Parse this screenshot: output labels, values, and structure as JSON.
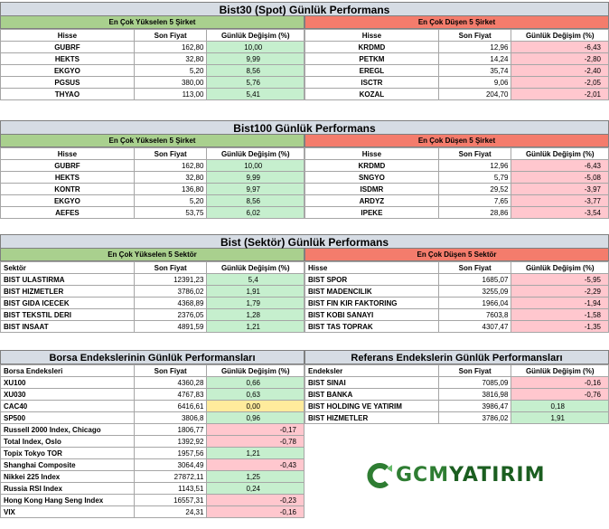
{
  "bist30": {
    "title": "Bist30 (Spot) Günlük Performans",
    "left_header": "En Çok Yükselen 5 Şirket",
    "right_header": "En Çok Düşen 5 Şirket",
    "cols": [
      "Hisse",
      "Son Fiyat",
      "Günlük Değişim (%)"
    ],
    "up": [
      [
        "GUBRF",
        "162,80",
        "10,00"
      ],
      [
        "HEKTS",
        "32,80",
        "9,99"
      ],
      [
        "EKGYO",
        "5,20",
        "8,56"
      ],
      [
        "PGSUS",
        "380,00",
        "5,76"
      ],
      [
        "THYAO",
        "113,00",
        "5,41"
      ]
    ],
    "down": [
      [
        "KRDMD",
        "12,96",
        "-6,43"
      ],
      [
        "PETKM",
        "14,24",
        "-2,80"
      ],
      [
        "EREGL",
        "35,74",
        "-2,40"
      ],
      [
        "ISCTR",
        "9,06",
        "-2,05"
      ],
      [
        "KOZAL",
        "204,70",
        "-2,01"
      ]
    ]
  },
  "bist100": {
    "title": "Bist100 Günlük Performans",
    "left_header": "En Çok Yükselen 5 Şirket",
    "right_header": "En Çok Düşen 5 Şirket",
    "cols": [
      "Hisse",
      "Son Fiyat",
      "Günlük Değişim (%)"
    ],
    "up": [
      [
        "GUBRF",
        "162,80",
        "10,00"
      ],
      [
        "HEKTS",
        "32,80",
        "9,99"
      ],
      [
        "KONTR",
        "136,80",
        "9,97"
      ],
      [
        "EKGYO",
        "5,20",
        "8,56"
      ],
      [
        "AEFES",
        "53,75",
        "6,02"
      ]
    ],
    "down": [
      [
        "KRDMD",
        "12,96",
        "-6,43"
      ],
      [
        "SNGYO",
        "5,79",
        "-5,08"
      ],
      [
        "ISDMR",
        "29,52",
        "-3,97"
      ],
      [
        "ARDYZ",
        "7,65",
        "-3,77"
      ],
      [
        "IPEKE",
        "28,86",
        "-3,54"
      ]
    ]
  },
  "sector": {
    "title": "Bist (Sektör) Günlük Performans",
    "left_header": "En Çok Yükselen 5 Sektör",
    "right_header": "En Çok Düşen 5 Sektör",
    "left_cols": [
      "Sektör",
      "Son Fiyat",
      "Günlük Değişim (%)"
    ],
    "right_cols": [
      "Hisse",
      "Son Fiyat",
      "Günlük Değişim (%)"
    ],
    "up": [
      [
        "BIST ULASTIRMA",
        "12391,23",
        "5,4"
      ],
      [
        "BIST HIZMETLER",
        "3786,02",
        "1,91"
      ],
      [
        "BIST GIDA ICECEK",
        "4368,89",
        "1,79"
      ],
      [
        "BIST TEKSTIL DERI",
        "2376,05",
        "1,28"
      ],
      [
        "BIST INSAAT",
        "4891,59",
        "1,21"
      ]
    ],
    "down": [
      [
        "BIST SPOR",
        "1685,07",
        "-5,95"
      ],
      [
        "BIST MADENCILIK",
        "3255,09",
        "-2,29"
      ],
      [
        "BIST FIN KIR FAKTORING",
        "1966,04",
        "-1,94"
      ],
      [
        "BIST KOBI SANAYI",
        "7603,8",
        "-1,58"
      ],
      [
        "BIST TAS TOPRAK",
        "4307,47",
        "-1,35"
      ]
    ]
  },
  "borsa": {
    "title": "Borsa Endekslerinin Günlük Performansları",
    "cols": [
      "Borsa Endeksleri",
      "Son Fiyat",
      "Günlük Değişim (%)"
    ],
    "rows": [
      [
        "XU100",
        "4360,28",
        "0,66",
        "pos"
      ],
      [
        "XU030",
        "4767,83",
        "0,63",
        "pos"
      ],
      [
        "CAC40",
        "6416,61",
        "0,00",
        "zero"
      ],
      [
        "SP500",
        "3806,8",
        "0,96",
        "pos"
      ],
      [
        "Russell 2000 Index, Chicago",
        "1806,77",
        "-0,17",
        "neg"
      ],
      [
        "Total Index, Oslo",
        "1392,92",
        "-0,78",
        "neg"
      ],
      [
        "Topix Tokyo TOR",
        "1957,56",
        "1,21",
        "pos"
      ],
      [
        "Shanghai Composite",
        "3064,49",
        "-0,43",
        "neg"
      ],
      [
        "Nikkei 225 Index",
        "27872,11",
        "1,25",
        "pos"
      ],
      [
        "Russia RSI Index",
        "1143,51",
        "0,24",
        "pos"
      ],
      [
        "Hong Kong Hang Seng Index",
        "16557,31",
        "-0,23",
        "neg"
      ],
      [
        "VIX",
        "24,31",
        "-0,16",
        "neg"
      ]
    ]
  },
  "referans": {
    "title": "Referans Endekslerin  Günlük Performansları",
    "cols": [
      "Endeksler",
      "Son Fiyat",
      "Günlük Değişim (%)"
    ],
    "rows": [
      [
        "BIST SINAI",
        "7085,09",
        "-0,16",
        "neg"
      ],
      [
        "BIST BANKA",
        "3816,98",
        "-0,76",
        "neg"
      ],
      [
        "BIST HOLDING VE YATIRIM",
        "3986,47",
        "0,18",
        "pos"
      ],
      [
        "BIST HIZMETLER",
        "3786,02",
        "1,91",
        "pos"
      ]
    ]
  },
  "logo": {
    "text_a": "GCM",
    "text_b": "YATIRIM"
  },
  "colors": {
    "up_header": "#a9d08e",
    "down_header": "#f47c6c",
    "pos": "#c6efce",
    "neg": "#ffc7ce",
    "zero": "#ffeb9c",
    "title": "#d6dce4"
  }
}
